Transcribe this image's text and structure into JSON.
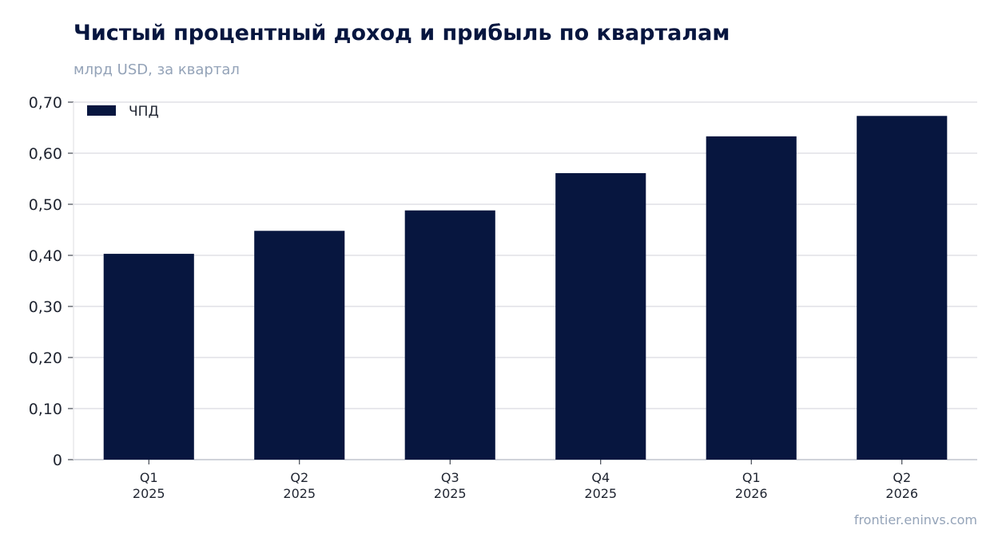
{
  "title": "Чистый процентный доход и прибыль по кварталам",
  "subtitle": "млрд USD, за квартал",
  "source": "frontier.eninvs.com",
  "colors": {
    "bar": "#07163f",
    "grid": "#e8e8ec",
    "axis": "#d0d3da"
  },
  "chart_data": {
    "type": "bar",
    "categories": [
      [
        "Q1",
        "2025"
      ],
      [
        "Q2",
        "2025"
      ],
      [
        "Q3",
        "2025"
      ],
      [
        "Q4",
        "2025"
      ],
      [
        "Q1",
        "2026"
      ],
      [
        "Q2",
        "2026"
      ]
    ],
    "series": [
      {
        "name": "ЧПД",
        "values": [
          0.403,
          0.448,
          0.488,
          0.561,
          0.633,
          0.673
        ]
      }
    ],
    "ylim": [
      0,
      0.7
    ],
    "yticks": [
      "0",
      "0,10",
      "0,20",
      "0,30",
      "0,40",
      "0,50",
      "0,60",
      "0,70"
    ],
    "ytick_values": [
      0,
      0.1,
      0.2,
      0.3,
      0.4,
      0.5,
      0.6,
      0.7
    ],
    "grid": true,
    "legend": "top-left"
  }
}
